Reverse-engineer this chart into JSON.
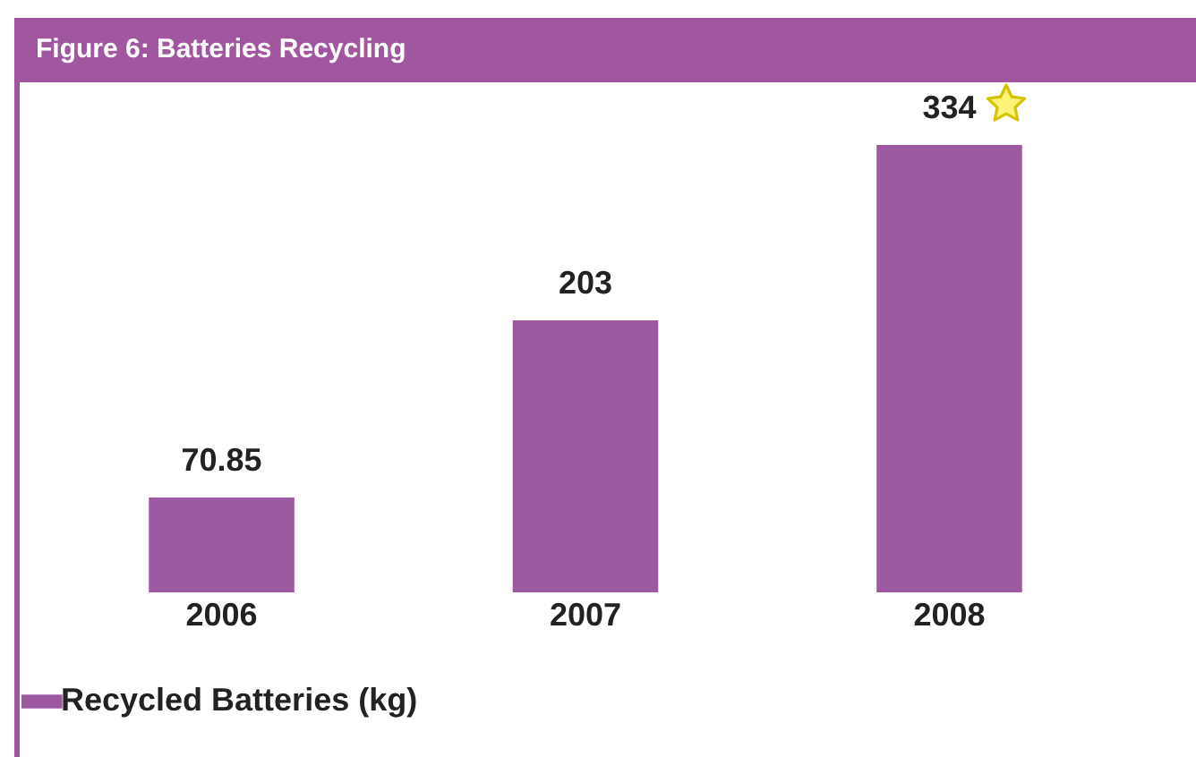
{
  "chart_data": {
    "type": "bar",
    "title": "Figure 6: Batteries Recycling",
    "categories": [
      "2006",
      "2007",
      "2008"
    ],
    "series": [
      {
        "name": "Recycled Batteries (kg)",
        "color": "#9e59a3",
        "values": [
          70.85,
          203,
          334
        ]
      }
    ],
    "data_labels": true,
    "legend": "bottom",
    "grid": false
  }
}
